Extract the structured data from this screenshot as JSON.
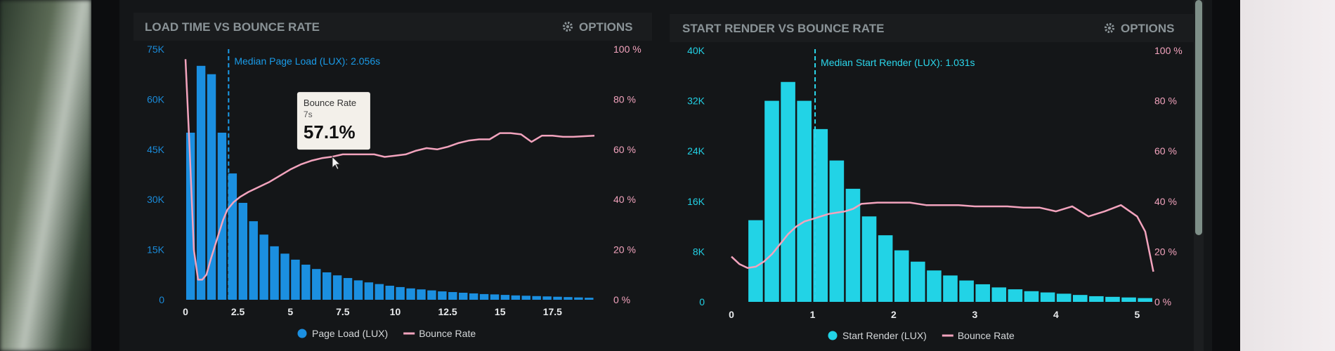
{
  "chart_data": [
    {
      "type": "bar",
      "title": "LOAD TIME VS BOUNCE RATE",
      "options_label": "OPTIONS",
      "x_ticks": [
        "0",
        "2.5",
        "5",
        "7.5",
        "10",
        "12.5",
        "15",
        "17.5"
      ],
      "x_tick_values": [
        0,
        2.5,
        5,
        7.5,
        10,
        12.5,
        15,
        17.5
      ],
      "xlim": [
        -0.2,
        19.7
      ],
      "y_left_ticks": [
        "0",
        "15K",
        "30K",
        "45K",
        "60K",
        "75K"
      ],
      "ylim_left": [
        0,
        75000
      ],
      "y_right_ticks": [
        "0 %",
        "20 %",
        "40 %",
        "60 %",
        "80 %",
        "100 %"
      ],
      "ylim_right": [
        0,
        100
      ],
      "bar_width": 0.5,
      "series": [
        {
          "name": "Page Load (LUX)",
          "kind": "bar",
          "color": "#1b8fe0",
          "x": [
            0,
            0.5,
            1,
            1.5,
            2,
            2.5,
            3,
            3.5,
            4,
            4.5,
            5,
            5.5,
            6,
            6.5,
            7,
            7.5,
            8,
            8.5,
            9,
            9.5,
            10,
            10.5,
            11,
            11.5,
            12,
            12.5,
            13,
            13.5,
            14,
            14.5,
            15,
            15.5,
            16,
            16.5,
            17,
            17.5,
            18,
            18.5,
            19
          ],
          "values": [
            50000,
            70000,
            67500,
            50000,
            37800,
            29000,
            23500,
            19500,
            16000,
            13800,
            12000,
            10500,
            9200,
            8200,
            7300,
            6500,
            5800,
            5200,
            4700,
            4200,
            3800,
            3400,
            3100,
            2800,
            2500,
            2300,
            2100,
            1900,
            1700,
            1600,
            1450,
            1300,
            1200,
            1100,
            1000,
            900,
            800,
            700,
            600
          ]
        },
        {
          "name": "Bounce Rate",
          "kind": "line",
          "axis": "right",
          "color": "#f2a3bd",
          "x": [
            0,
            0.2,
            0.4,
            0.6,
            0.8,
            1,
            1.2,
            1.5,
            1.8,
            2,
            2.3,
            2.6,
            3,
            3.5,
            4,
            4.5,
            5,
            5.5,
            6,
            6.5,
            7,
            7.5,
            8,
            8.5,
            9,
            9.5,
            10,
            10.5,
            11,
            11.5,
            12,
            12.5,
            13,
            13.5,
            14,
            14.5,
            15,
            15.5,
            16,
            16.5,
            17,
            17.5,
            18,
            18.5,
            19.5
          ],
          "values": [
            96,
            60,
            20,
            8,
            8,
            10,
            16,
            24,
            32,
            36,
            39,
            41,
            43,
            45,
            47,
            49.5,
            52,
            54,
            55.5,
            56.5,
            57.1,
            58,
            58,
            58,
            58,
            57,
            57.5,
            58,
            59.5,
            60.5,
            60,
            61,
            62.5,
            63.5,
            64,
            64,
            66.5,
            66.5,
            66,
            63,
            65.5,
            65.5,
            65,
            65,
            65.5
          ]
        }
      ],
      "median_x": 2.056,
      "median_label": "Median Page Load (LUX): 2.056s",
      "tooltip": {
        "title": "Bounce Rate",
        "x_label": "7s",
        "value": "57.1%",
        "x": 7,
        "y": 57.1
      }
    },
    {
      "type": "bar",
      "title": "START RENDER VS BOUNCE RATE",
      "options_label": "OPTIONS",
      "x_ticks": [
        "0",
        "1",
        "2",
        "3",
        "4",
        "5"
      ],
      "x_tick_values": [
        0,
        1,
        2,
        3,
        4,
        5
      ],
      "xlim": [
        0,
        5.3
      ],
      "y_left_ticks": [
        "0",
        "8K",
        "16K",
        "24K",
        "32K",
        "40K"
      ],
      "ylim_left": [
        0,
        40000
      ],
      "y_right_ticks": [
        "0 %",
        "20 %",
        "40 %",
        "60 %",
        "80 %",
        "100 %"
      ],
      "ylim_right": [
        0,
        100
      ],
      "bar_width": 0.2,
      "series": [
        {
          "name": "Start Render (LUX)",
          "kind": "bar",
          "color": "#22d3e6",
          "x": [
            0.2,
            0.4,
            0.6,
            0.8,
            1.0,
            1.2,
            1.4,
            1.6,
            1.8,
            2.0,
            2.2,
            2.4,
            2.6,
            2.8,
            3.0,
            3.2,
            3.4,
            3.6,
            3.8,
            4.0,
            4.2,
            4.4,
            4.6,
            4.8,
            5.0
          ],
          "values": [
            13000,
            32000,
            35000,
            32000,
            27500,
            22500,
            18000,
            13600,
            10600,
            8200,
            6400,
            5000,
            4200,
            3400,
            2800,
            2300,
            2000,
            1700,
            1500,
            1300,
            1100,
            900,
            800,
            700,
            600
          ]
        },
        {
          "name": "Bounce Rate",
          "kind": "line",
          "axis": "right",
          "color": "#f2a3bd",
          "x": [
            0,
            0.1,
            0.2,
            0.3,
            0.4,
            0.5,
            0.6,
            0.7,
            0.8,
            0.9,
            1.0,
            1.1,
            1.2,
            1.3,
            1.4,
            1.5,
            1.6,
            1.8,
            2.0,
            2.2,
            2.4,
            2.6,
            2.8,
            3.0,
            3.2,
            3.4,
            3.6,
            3.8,
            4.0,
            4.2,
            4.4,
            4.6,
            4.8,
            5.0,
            5.1,
            5.2
          ],
          "values": [
            18,
            15,
            13.5,
            14,
            16,
            19,
            23,
            27,
            30,
            32,
            33,
            34,
            35,
            35.5,
            36,
            37,
            39,
            39.5,
            39.5,
            39.5,
            38.5,
            38.5,
            38.5,
            38,
            38,
            38,
            37.5,
            37.5,
            36,
            38,
            34,
            36,
            38.5,
            34,
            28,
            12
          ]
        }
      ],
      "median_x": 1.031,
      "median_label": "Median Start Render (LUX): 1.031s"
    }
  ]
}
